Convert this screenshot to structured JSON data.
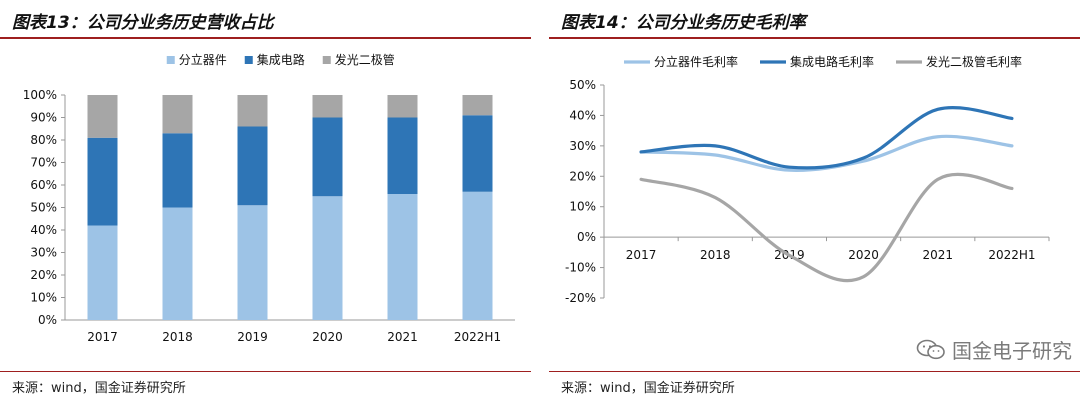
{
  "left": {
    "figure_label": "图表13：",
    "title": "公司分业务历史营收占比",
    "source": "来源：wind，国金证券研究所"
  },
  "right": {
    "figure_label": "图表14：",
    "title": "公司分业务历史毛利率",
    "source": "来源：wind，国金证券研究所"
  },
  "watermark": {
    "text": "国金电子研究",
    "icon": "wechat-icon"
  },
  "chart_data": [
    {
      "type": "bar",
      "stacked": true,
      "title": "公司分业务历史营收占比",
      "categories": [
        "2017",
        "2018",
        "2019",
        "2020",
        "2021",
        "2022H1"
      ],
      "series": [
        {
          "name": "分立器件",
          "color": "#9dc3e6",
          "values": [
            0.42,
            0.5,
            0.51,
            0.55,
            0.56,
            0.57
          ]
        },
        {
          "name": "集成电路",
          "color": "#2e75b6",
          "values": [
            0.39,
            0.33,
            0.35,
            0.35,
            0.34,
            0.34
          ]
        },
        {
          "name": "发光二极管",
          "color": "#a6a6a6",
          "values": [
            0.19,
            0.17,
            0.14,
            0.1,
            0.1,
            0.09
          ]
        }
      ],
      "ylim": [
        0,
        1
      ],
      "yticks": [
        "0%",
        "10%",
        "20%",
        "30%",
        "40%",
        "50%",
        "60%",
        "70%",
        "80%",
        "90%",
        "100%"
      ],
      "legend": "top",
      "grid": false
    },
    {
      "type": "line",
      "title": "公司分业务历史毛利率",
      "categories": [
        "2017",
        "2018",
        "2019",
        "2020",
        "2021",
        "2022H1"
      ],
      "series": [
        {
          "name": "分立器件毛利率",
          "color": "#9dc3e6",
          "values": [
            0.28,
            0.27,
            0.22,
            0.25,
            0.33,
            0.3
          ]
        },
        {
          "name": "集成电路毛利率",
          "color": "#2e75b6",
          "values": [
            0.28,
            0.3,
            0.23,
            0.26,
            0.42,
            0.39
          ]
        },
        {
          "name": "发光二极管毛利率",
          "color": "#a6a6a6",
          "values": [
            0.19,
            0.13,
            -0.06,
            -0.13,
            0.19,
            0.16
          ]
        }
      ],
      "ylim": [
        -0.2,
        0.5
      ],
      "yticks": [
        "-20%",
        "-10%",
        "0%",
        "10%",
        "20%",
        "30%",
        "40%",
        "50%"
      ],
      "legend": "top",
      "grid": false,
      "smooth": true
    }
  ]
}
